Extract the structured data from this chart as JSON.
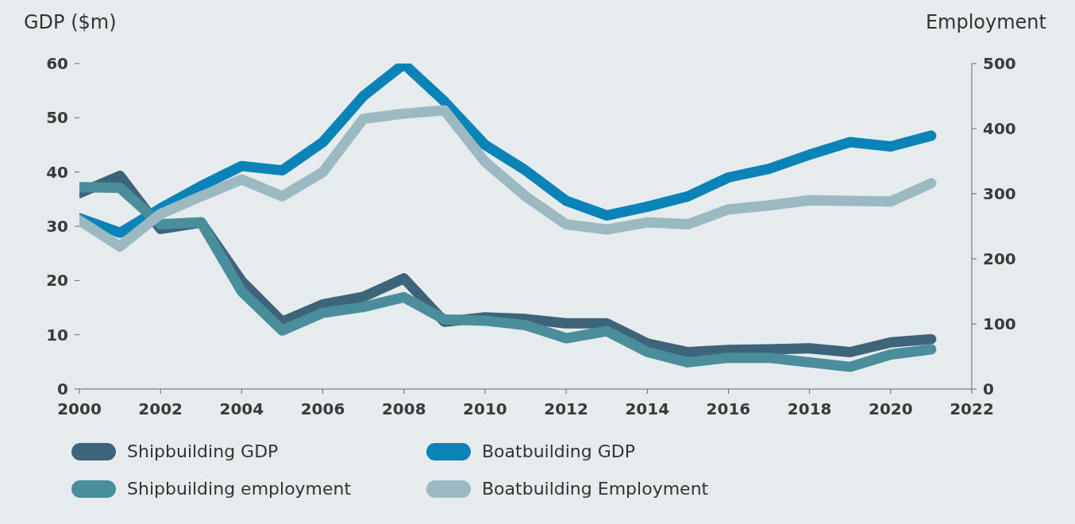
{
  "chart_data": {
    "type": "line",
    "ylabel": "GDP ($m)",
    "y2label": "Employment",
    "x": [
      2000,
      2001,
      2002,
      2003,
      2004,
      2005,
      2006,
      2007,
      2008,
      2009,
      2010,
      2011,
      2012,
      2013,
      2014,
      2015,
      2016,
      2017,
      2018,
      2019,
      2020,
      2021
    ],
    "xlim": [
      2000,
      2022
    ],
    "xticks": [
      2000,
      2002,
      2004,
      2006,
      2008,
      2010,
      2012,
      2014,
      2016,
      2018,
      2020,
      2022
    ],
    "ylim": [
      0,
      60
    ],
    "yticks": [
      0,
      10,
      20,
      30,
      40,
      50,
      60
    ],
    "y2lim": [
      0,
      500
    ],
    "y2ticks": [
      0,
      100,
      200,
      300,
      400,
      500
    ],
    "grid": false,
    "legend": "bottom",
    "marker": "none",
    "line_style": "solid",
    "series": [
      {
        "name": "Shipbuilding GDP",
        "color": "#3d6478",
        "values": [
          36.1,
          39.3,
          29.5,
          30.7,
          19.9,
          12.4,
          15.6,
          17,
          20.4,
          12.4,
          13.2,
          12.9,
          12.1,
          12.1,
          8.4,
          6.8,
          7.2,
          7.3,
          7.5,
          6.8,
          8.6,
          9.2
        ]
      },
      {
        "name": "Boatbuilding GDP",
        "color": "#0a84b8",
        "values": [
          31.5,
          28.8,
          33.3,
          37.4,
          41.1,
          40.3,
          45.5,
          54,
          59.9,
          53,
          45,
          40.3,
          34.7,
          32,
          33.6,
          35.5,
          39,
          40.6,
          43.2,
          45.5,
          44.7,
          46.7
        ]
      },
      {
        "name": "Shipbuilding employment",
        "color": "#4a8e9c",
        "axis": "y2",
        "values": [
          310,
          309,
          253,
          256,
          150,
          90,
          117,
          126,
          141,
          107,
          105,
          98,
          78,
          89,
          57,
          41,
          48,
          48,
          41,
          34,
          53,
          61
        ]
      },
      {
        "name": "Boatbuilding Employment",
        "color": "#9cb9c2",
        "axis": "y2",
        "values": [
          259,
          219,
          269,
          296,
          322,
          296,
          333,
          415,
          423,
          428,
          349,
          296,
          253,
          245,
          256,
          253,
          276,
          282,
          290,
          289,
          288,
          316
        ]
      }
    ]
  }
}
